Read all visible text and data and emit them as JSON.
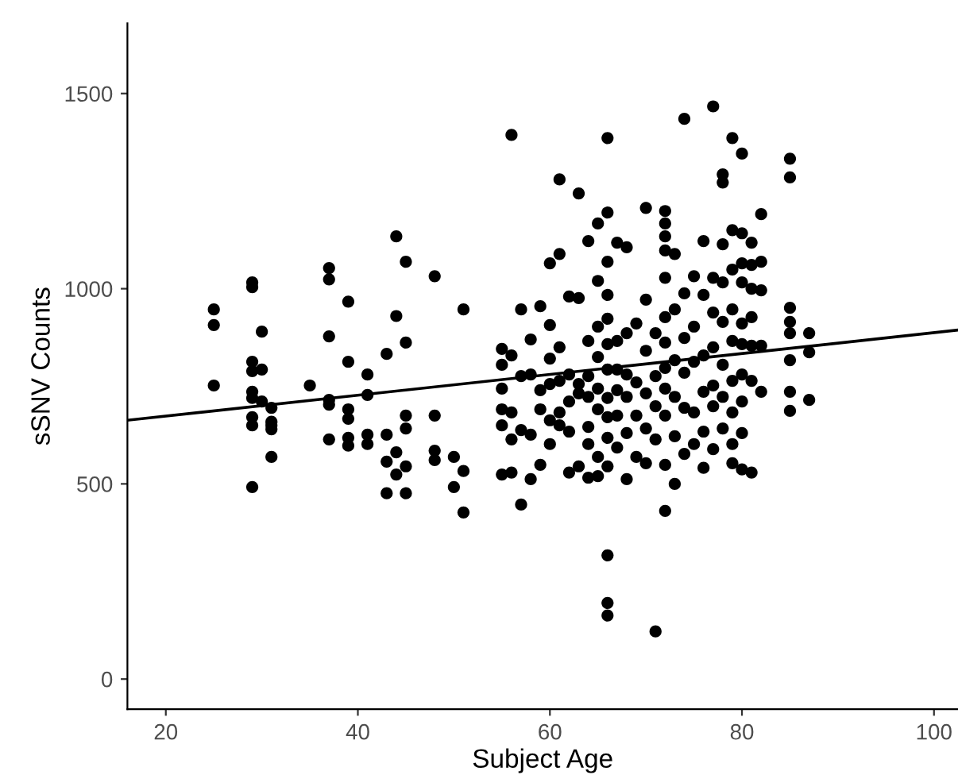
{
  "chart_data": {
    "type": "scatter",
    "xlabel": "Subject Age",
    "ylabel": "sSNV Counts",
    "xlim": [
      16,
      102.5
    ],
    "ylim": [
      -77,
      1680
    ],
    "xticks": [
      20,
      40,
      60,
      80,
      100
    ],
    "yticks": [
      0,
      500,
      1000,
      1500
    ],
    "grid": false,
    "marker": "circle",
    "series": [
      {
        "color": "#000000",
        "x": [
          25,
          25,
          25,
          29,
          29,
          29,
          29,
          29,
          29,
          29,
          29,
          29,
          30,
          30,
          30,
          31,
          31,
          31,
          31,
          31,
          35,
          37,
          37,
          37,
          37,
          37,
          37,
          39,
          39,
          39,
          39,
          39,
          39,
          41,
          41,
          41,
          41,
          43,
          43,
          43,
          43,
          44,
          44,
          44,
          44,
          45,
          45,
          45,
          45,
          45,
          45,
          48,
          48,
          48,
          48,
          50,
          50,
          51,
          51,
          51,
          55,
          55,
          55,
          55,
          55,
          55,
          56,
          56,
          56,
          56,
          56,
          57,
          57,
          57,
          57,
          58,
          58,
          58,
          58,
          59,
          59,
          59,
          59,
          60,
          60,
          60,
          60,
          60,
          60,
          61,
          61,
          61,
          61,
          61,
          61,
          62,
          62,
          62,
          62,
          62,
          63,
          63,
          63,
          63,
          63,
          64,
          64,
          64,
          64,
          64,
          64,
          64,
          65,
          65,
          65,
          65,
          65,
          65,
          65,
          65,
          66,
          66,
          66,
          66,
          66,
          66,
          66,
          66,
          66,
          66,
          66,
          66,
          66,
          66,
          67,
          67,
          67,
          67,
          67,
          67,
          68,
          68,
          68,
          68,
          68,
          68,
          69,
          69,
          69,
          69,
          70,
          70,
          70,
          70,
          70,
          70,
          71,
          71,
          71,
          71,
          71,
          72,
          72,
          72,
          72,
          72,
          72,
          72,
          72,
          72,
          72,
          72,
          72,
          73,
          73,
          73,
          73,
          73,
          73,
          74,
          74,
          74,
          74,
          74,
          74,
          75,
          75,
          75,
          75,
          75,
          76,
          76,
          76,
          76,
          76,
          76,
          77,
          77,
          77,
          77,
          77,
          77,
          77,
          78,
          78,
          78,
          78,
          78,
          78,
          78,
          78,
          79,
          79,
          79,
          79,
          79,
          79,
          79,
          79,
          79,
          80,
          80,
          80,
          80,
          80,
          80,
          80,
          80,
          80,
          80,
          81,
          81,
          81,
          81,
          81,
          81,
          81,
          82,
          82,
          82,
          82,
          82,
          85,
          85,
          85,
          85,
          85,
          85,
          85,
          85,
          87,
          87,
          87
        ],
        "values": [
          947,
          907,
          752,
          1016,
          1004,
          813,
          789,
          736,
          720,
          671,
          650,
          492,
          890,
          793,
          711,
          695,
          659,
          650,
          569,
          640,
          752,
          1053,
          1024,
          878,
          715,
          614,
          703,
          967,
          813,
          691,
          667,
          618,
          598,
          780,
          728,
          626,
          602,
          833,
          557,
          476,
          626,
          1134,
          930,
          581,
          524,
          1069,
          862,
          642,
          545,
          476,
          675,
          1032,
          561,
          585,
          675,
          569,
          492,
          947,
          533,
          427,
          846,
          805,
          744,
          691,
          650,
          524,
          1394,
          829,
          683,
          614,
          529,
          947,
          776,
          638,
          447,
          626,
          512,
          780,
          870,
          955,
          740,
          691,
          549,
          1065,
          907,
          821,
          756,
          663,
          602,
          1280,
          1089,
          850,
          764,
          683,
          650,
          980,
          780,
          711,
          634,
          529,
          1244,
          976,
          756,
          545,
          732,
          1122,
          866,
          776,
          723,
          646,
          602,
          516,
          1167,
          1020,
          903,
          825,
          744,
          691,
          569,
          520,
          1386,
          1195,
          1069,
          984,
          923,
          858,
          793,
          720,
          671,
          618,
          545,
          317,
          195,
          163,
          1118,
          866,
          793,
          740,
          675,
          593,
          1106,
          886,
          780,
          723,
          630,
          512,
          911,
          760,
          675,
          569,
          1207,
          972,
          841,
          732,
          642,
          553,
          122,
          886,
          776,
          699,
          614,
          1199,
          1167,
          1134,
          1098,
          1028,
          927,
          862,
          797,
          744,
          675,
          549,
          431,
          1089,
          947,
          817,
          723,
          622,
          500,
          1435,
          988,
          874,
          785,
          695,
          577,
          1032,
          903,
          813,
          683,
          602,
          1122,
          984,
          829,
          736,
          634,
          541,
          1467,
          1028,
          939,
          850,
          752,
          699,
          589,
          1293,
          1272,
          1114,
          1016,
          915,
          805,
          723,
          642,
          1386,
          1150,
          1049,
          947,
          866,
          764,
          683,
          602,
          553,
          1346,
          1142,
          1065,
          1016,
          911,
          858,
          780,
          711,
          630,
          537,
          1118,
          1061,
          1000,
          927,
          854,
          764,
          529,
          1191,
          1069,
          996,
          854,
          736,
          1333,
          1285,
          951,
          915,
          886,
          817,
          736,
          687,
          886,
          837,
          715
        ]
      },
      {
        "type": "line",
        "color": "#000000",
        "marker": "none",
        "line_style": "solid",
        "x": [
          16,
          102.5
        ],
        "values": [
          663,
          894
        ]
      }
    ]
  }
}
